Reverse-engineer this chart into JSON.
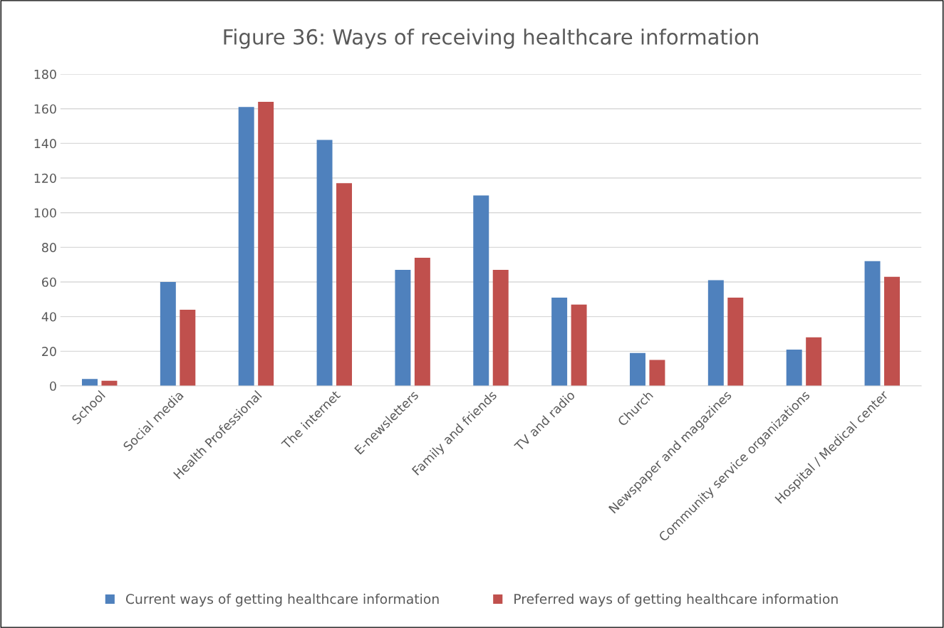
{
  "chart_data": {
    "type": "bar",
    "title": "Figure 36: Ways of receiving healthcare information",
    "categories": [
      "School",
      "Social media",
      "Health Professional",
      "The internet",
      "E-newsletters",
      "Family and friends",
      "TV and radio",
      "Church",
      "Newspaper and magazines",
      "Community service organizations",
      "Hospital / Medical center"
    ],
    "series": [
      {
        "name": "Current ways of getting healthcare information",
        "color": "#4f81bd",
        "values": [
          4,
          60,
          161,
          142,
          67,
          110,
          51,
          19,
          61,
          21,
          72
        ]
      },
      {
        "name": "Preferred ways of getting healthcare information",
        "color": "#c0504d",
        "values": [
          3,
          44,
          164,
          117,
          74,
          67,
          47,
          15,
          51,
          28,
          63
        ]
      }
    ],
    "ylim": [
      0,
      180
    ],
    "yticks": [
      0,
      20,
      40,
      60,
      80,
      100,
      120,
      140,
      160,
      180
    ],
    "grid": "y",
    "legend": "bottom"
  }
}
